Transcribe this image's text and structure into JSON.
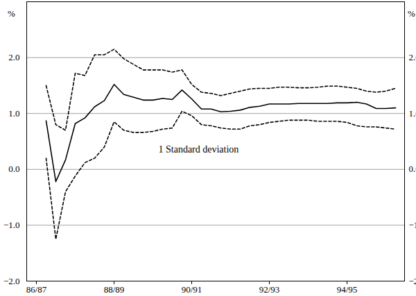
{
  "chart_data": {
    "type": "line",
    "categories": [
      "86/87",
      null,
      null,
      null,
      null,
      null,
      null,
      null,
      "88/89",
      null,
      null,
      null,
      null,
      null,
      null,
      null,
      "90/91",
      null,
      null,
      null,
      null,
      null,
      null,
      null,
      "92/93",
      null,
      null,
      null,
      null,
      null,
      null,
      null,
      "94/95",
      null,
      null,
      null,
      null,
      null
    ],
    "series": [
      {
        "color": "#000000",
        "line_style": "solid",
        "values": [
          null,
          0.87,
          -0.22,
          0.17,
          0.82,
          0.92,
          1.12,
          1.23,
          1.52,
          1.34,
          1.29,
          1.24,
          1.24,
          1.27,
          1.25,
          1.42,
          1.26,
          1.08,
          1.08,
          1.03,
          1.04,
          1.06,
          1.11,
          1.13,
          1.17,
          1.17,
          1.17,
          1.18,
          1.18,
          1.18,
          1.18,
          1.19,
          1.19,
          1.2,
          1.17,
          1.09,
          1.09,
          1.1
        ]
      },
      {
        "color": "#000000",
        "line_style": "dashed",
        "values": [
          null,
          1.5,
          0.8,
          0.7,
          1.72,
          1.68,
          2.05,
          2.05,
          2.15,
          1.98,
          1.88,
          1.78,
          1.78,
          1.78,
          1.74,
          1.78,
          1.52,
          1.38,
          1.36,
          1.32,
          1.36,
          1.4,
          1.44,
          1.45,
          1.45,
          1.47,
          1.47,
          1.46,
          1.46,
          1.47,
          1.49,
          1.49,
          1.47,
          1.45,
          1.4,
          1.38,
          1.4,
          1.45
        ]
      },
      {
        "color": "#000000",
        "line_style": "dashed",
        "values": [
          null,
          0.2,
          -1.25,
          -0.4,
          -0.12,
          0.12,
          0.2,
          0.4,
          0.85,
          0.7,
          0.66,
          0.66,
          0.68,
          0.72,
          0.74,
          1.04,
          0.96,
          0.8,
          0.78,
          0.74,
          0.72,
          0.72,
          0.78,
          0.8,
          0.84,
          0.86,
          0.88,
          0.88,
          0.88,
          0.86,
          0.86,
          0.86,
          0.84,
          0.78,
          0.76,
          0.76,
          0.74,
          0.72
        ]
      }
    ],
    "ylabel": "%",
    "ylim": [
      -2,
      3
    ],
    "yticks": [
      -2,
      -1,
      0,
      1,
      2
    ],
    "grid": true,
    "annotations": [
      "1 Standard deviation"
    ]
  }
}
